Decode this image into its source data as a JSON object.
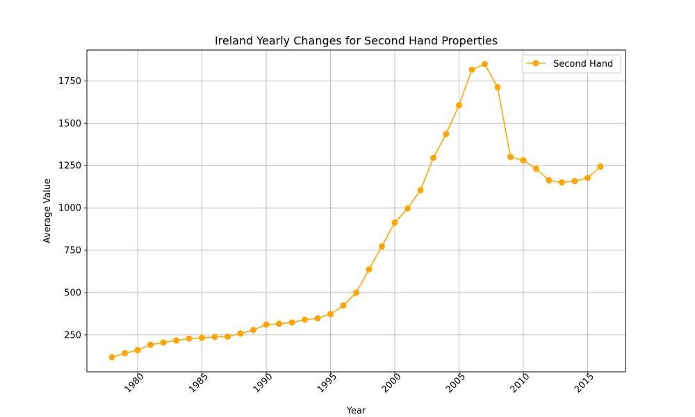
{
  "chart_data": {
    "type": "line",
    "title": "Ireland Yearly Changes for Second Hand Properties",
    "xlabel": "Year",
    "ylabel": "Average Value",
    "xlim": [
      1976.05,
      2017.95
    ],
    "ylim": [
      32,
      1932
    ],
    "xticks": [
      1980,
      1985,
      1990,
      1995,
      2000,
      2005,
      2010,
      2015
    ],
    "yticks": [
      250,
      500,
      750,
      1000,
      1250,
      1500,
      1750
    ],
    "grid": true,
    "legend": {
      "position": "top-right"
    },
    "series": [
      {
        "name": "Second Hand",
        "color": "#ffa500",
        "marker": "circle",
        "x": [
          1978,
          1979,
          1980,
          1981,
          1982,
          1983,
          1984,
          1985,
          1986,
          1987,
          1988,
          1989,
          1990,
          1991,
          1992,
          1993,
          1994,
          1995,
          1996,
          1997,
          1998,
          1999,
          2000,
          2001,
          2002,
          2003,
          2004,
          2005,
          2006,
          2007,
          2008,
          2009,
          2010,
          2011,
          2012,
          2013,
          2014,
          2015,
          2016
        ],
        "y": [
          118,
          142,
          160,
          192,
          205,
          217,
          228,
          233,
          238,
          240,
          258,
          279,
          311,
          316,
          323,
          340,
          348,
          373,
          424,
          499,
          637,
          772,
          913,
          997,
          1104,
          1295,
          1436,
          1606,
          1816,
          1849,
          1713,
          1301,
          1281,
          1231,
          1163,
          1150,
          1158,
          1177,
          1244
        ]
      }
    ]
  }
}
